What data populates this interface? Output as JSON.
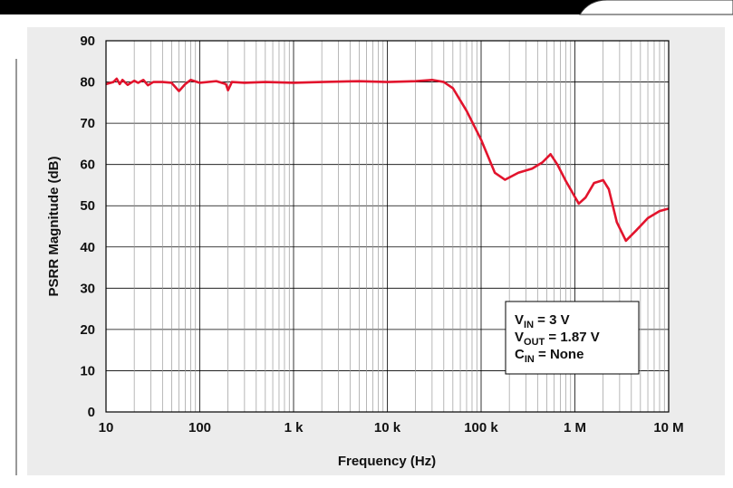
{
  "chart_data": {
    "type": "line",
    "xlabel": "Frequency (Hz)",
    "ylabel": "PSRR Magnitude (dB)",
    "xscale": "log",
    "grid": true,
    "xlim": [
      10,
      10000000
    ],
    "ylim": [
      0,
      90
    ],
    "xticks": [
      10,
      100,
      {
        "value": 1000,
        "label": "1 k"
      },
      {
        "value": 10000,
        "label": "10 k"
      },
      {
        "value": 100000,
        "label": "100 k"
      },
      {
        "value": 1000000,
        "label": "1 M"
      },
      {
        "value": 10000000,
        "label": "10 M"
      }
    ],
    "xminorticks": [
      20,
      30,
      40,
      50,
      60,
      70,
      80,
      90,
      200,
      300,
      400,
      500,
      600,
      700,
      800,
      900,
      2000,
      3000,
      4000,
      5000,
      6000,
      7000,
      8000,
      9000,
      20000,
      30000,
      40000,
      50000,
      60000,
      70000,
      80000,
      90000,
      200000,
      300000,
      400000,
      500000,
      600000,
      700000,
      800000,
      900000,
      2000000,
      3000000,
      4000000,
      5000000,
      6000000,
      7000000,
      8000000,
      9000000
    ],
    "yticks": [
      0,
      10,
      20,
      30,
      40,
      50,
      60,
      70,
      80,
      90
    ],
    "series": [
      {
        "color": "#e2142d",
        "x": [
          10,
          12,
          13,
          14,
          15,
          17,
          20,
          22,
          25,
          28,
          32,
          40,
          50,
          60,
          70,
          80,
          100,
          150,
          190,
          200,
          220,
          300,
          500,
          1000,
          2000,
          5000,
          10000,
          20000,
          30000,
          40000,
          50000,
          70000,
          100000,
          140000,
          180000,
          250000,
          350000,
          450000,
          550000,
          650000,
          800000,
          1100000,
          1300000,
          1600000,
          2000000,
          2300000,
          2800000,
          3500000,
          4500000,
          6000000,
          8000000,
          10000000
        ],
        "values": [
          79.5,
          80,
          80.8,
          79.5,
          80.5,
          79.3,
          80.3,
          79.8,
          80.5,
          79.2,
          80,
          80,
          79.8,
          77.8,
          79.5,
          80.5,
          79.8,
          80.2,
          79.5,
          78,
          80,
          79.8,
          80,
          79.8,
          80,
          80.2,
          80,
          80.2,
          80.5,
          80,
          78.5,
          73,
          66,
          58,
          56.3,
          58,
          59,
          60.5,
          62.5,
          60,
          56,
          50.5,
          52,
          55.5,
          56.2,
          54,
          46,
          41.5,
          44,
          47,
          48.7,
          49.3
        ]
      }
    ],
    "annotation": [
      {
        "main": "V",
        "sub": "IN",
        "rest": " = 3 V"
      },
      {
        "main": "V",
        "sub": "OUT",
        "rest": " = 1.87 V"
      },
      {
        "main": "C",
        "sub": "IN",
        "rest": " = None"
      }
    ]
  }
}
